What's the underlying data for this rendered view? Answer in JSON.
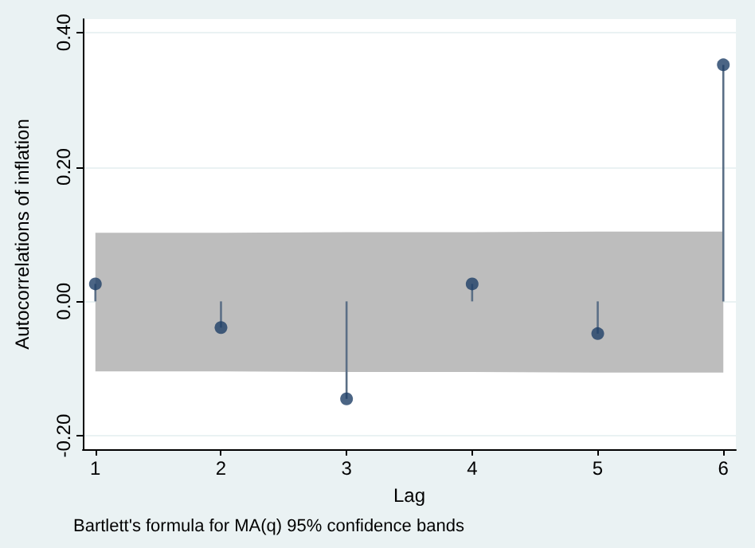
{
  "chart_data": {
    "type": "lollipop",
    "xlabel": "Lag",
    "ylabel": "Autocorrelations of inflation",
    "annotations": [
      "Bartlett's formula for MA(q) 95% confidence bands"
    ],
    "x": [
      1,
      2,
      3,
      4,
      5,
      6
    ],
    "series": [
      {
        "color": "#1e3f66",
        "values": [
          0.026,
          -0.039,
          -0.145,
          0.026,
          -0.048,
          0.352
        ],
        "lower": [
          -0.104,
          -0.104,
          -0.105,
          -0.105,
          -0.106,
          -0.106
        ],
        "upper": [
          0.102,
          0.102,
          0.103,
          0.103,
          0.104,
          0.104
        ]
      }
    ],
    "xlim": [
      0.9,
      6.1
    ],
    "xticks": [
      1,
      2,
      3,
      4,
      5,
      6
    ],
    "ylim": [
      -0.22,
      0.42
    ],
    "yticks": [
      {
        "value": -0.2,
        "label": "-0.20"
      },
      {
        "value": 0,
        "label": "0.00"
      },
      {
        "value": 0.2,
        "label": "0.20"
      },
      {
        "value": 0.4,
        "label": "0.40"
      }
    ],
    "grid": "y",
    "marker": "circle"
  }
}
